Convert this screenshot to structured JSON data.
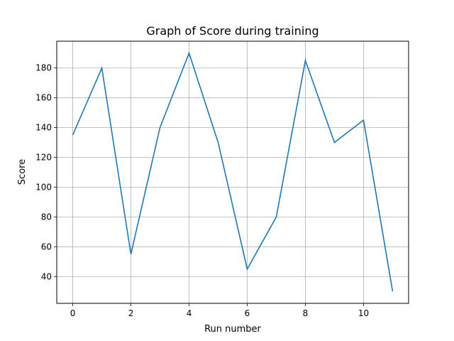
{
  "chart_data": {
    "type": "line",
    "title": "Graph of Score during training",
    "xlabel": "Run number",
    "ylabel": "Score",
    "x": [
      0,
      1,
      2,
      3,
      4,
      5,
      6,
      7,
      8,
      9,
      10,
      11
    ],
    "series": [
      {
        "values": [
          135,
          180,
          55,
          140,
          190,
          130,
          45,
          80,
          185,
          130,
          145,
          30
        ]
      }
    ],
    "xlim": [
      -0.55,
      11.55
    ],
    "ylim": [
      22,
      198
    ],
    "xticks": [
      0,
      2,
      4,
      6,
      8,
      10
    ],
    "yticks": [
      40,
      60,
      80,
      100,
      120,
      140,
      160,
      180
    ],
    "grid": true,
    "line_color": "#1f77b4"
  }
}
